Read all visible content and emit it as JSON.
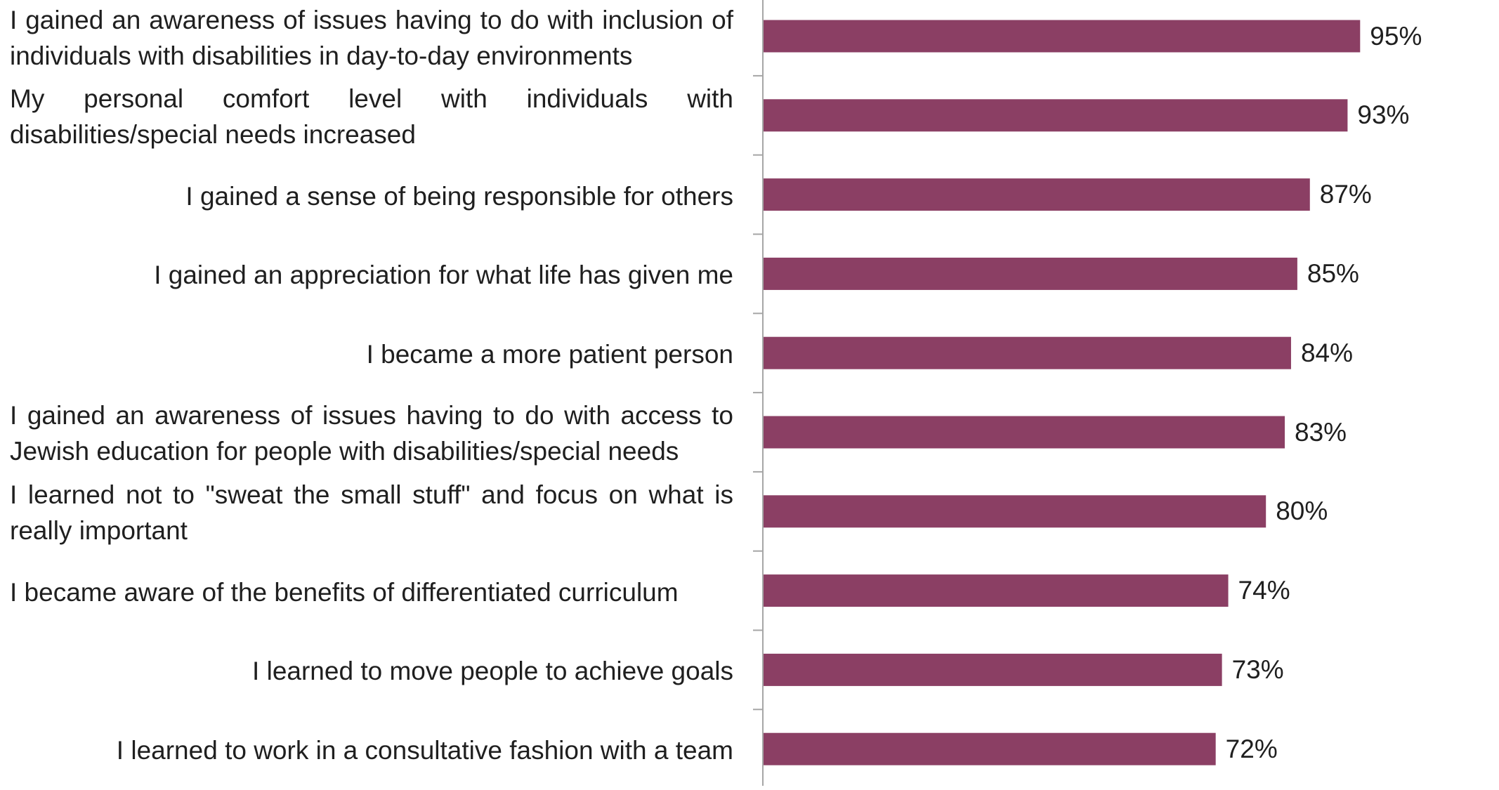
{
  "chart_data": {
    "type": "bar",
    "orientation": "horizontal",
    "categories": [
      "I gained an awareness of issues having to do with inclusion of individuals with disabilities in day-to-day environments",
      "My personal comfort level with individuals with disabilities/special needs increased",
      "I gained a sense of being responsible for others",
      "I gained an appreciation for what life has given me",
      "I became a more patient person",
      "I gained an awareness of issues having to do with access to Jewish education for people with disabilities/special needs",
      "I learned not to \"sweat the small stuff\" and focus on what is really important",
      "I became aware of the benefits of differentiated curriculum",
      "I learned to move people to achieve goals",
      "I learned to work in a consultative fashion with a team"
    ],
    "values": [
      95,
      93,
      87,
      85,
      84,
      83,
      80,
      74,
      73,
      72
    ],
    "value_labels": [
      "95%",
      "93%",
      "87%",
      "85%",
      "84%",
      "83%",
      "80%",
      "74%",
      "73%",
      "72%"
    ],
    "xlim": [
      0,
      100
    ],
    "bar_color": "#8b3f64",
    "axis_color": "#a6a6a6",
    "grid": false,
    "legend": "none"
  }
}
